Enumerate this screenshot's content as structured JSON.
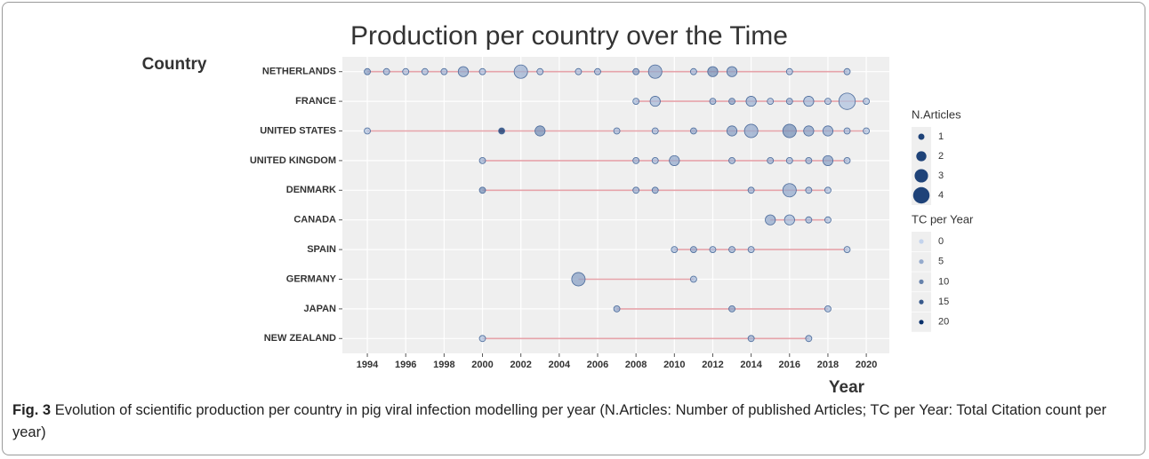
{
  "chart_data": {
    "type": "scatter",
    "title": "Production per country over the Time",
    "xlabel": "Year",
    "ylabel": "Country",
    "xlim": [
      1992.7,
      2021.2
    ],
    "xticks": [
      1994,
      1996,
      1998,
      2000,
      2002,
      2004,
      2006,
      2008,
      2010,
      2012,
      2014,
      2016,
      2018,
      2020
    ],
    "grid": true,
    "line_color": "#e6a3aa",
    "color_low": "#c3d3ec",
    "color_high": "#08306b",
    "series": [
      {
        "name": "NETHERLANDS",
        "x": [
          1994,
          1995,
          1996,
          1997,
          1998,
          1999,
          2000,
          2002,
          2003,
          2005,
          2006,
          2008,
          2009,
          2011,
          2012,
          2013,
          2016,
          2019
        ],
        "values": [
          1,
          1,
          1,
          1,
          1,
          2,
          1,
          3,
          1,
          1,
          1,
          1,
          3,
          1,
          2,
          2,
          1,
          1
        ],
        "tc": [
          6,
          3,
          2,
          2,
          3,
          5,
          2,
          4,
          2,
          2,
          3,
          6,
          5,
          3,
          8,
          6,
          2,
          3
        ]
      },
      {
        "name": "FRANCE",
        "x": [
          2008,
          2009,
          2012,
          2013,
          2014,
          2015,
          2016,
          2017,
          2018,
          2019,
          2020
        ],
        "values": [
          1,
          2,
          1,
          1,
          2,
          1,
          1,
          2,
          1,
          4,
          1
        ],
        "tc": [
          3,
          3,
          4,
          6,
          4,
          2,
          4,
          3,
          2,
          2,
          2
        ]
      },
      {
        "name": "UNITED STATES",
        "x": [
          1994,
          2001,
          2003,
          2007,
          2009,
          2011,
          2013,
          2014,
          2016,
          2017,
          2018,
          2019,
          2020
        ],
        "values": [
          1,
          1,
          2,
          1,
          1,
          1,
          2,
          3,
          3,
          2,
          2,
          1,
          1
        ],
        "tc": [
          2,
          20,
          8,
          3,
          3,
          5,
          6,
          5,
          8,
          6,
          5,
          3,
          2
        ]
      },
      {
        "name": "UNITED KINGDOM",
        "x": [
          2000,
          2008,
          2009,
          2010,
          2013,
          2015,
          2016,
          2017,
          2018,
          2019
        ],
        "values": [
          1,
          1,
          1,
          2,
          1,
          1,
          1,
          1,
          2,
          1
        ],
        "tc": [
          4,
          4,
          3,
          5,
          4,
          4,
          3,
          4,
          6,
          3
        ]
      },
      {
        "name": "DENMARK",
        "x": [
          2000,
          2008,
          2009,
          2014,
          2016,
          2017,
          2018
        ],
        "values": [
          1,
          1,
          1,
          1,
          3,
          1,
          1
        ],
        "tc": [
          8,
          4,
          5,
          4,
          5,
          3,
          2
        ]
      },
      {
        "name": "CANADA",
        "x": [
          2015,
          2016,
          2017,
          2018
        ],
        "values": [
          2,
          2,
          1,
          1
        ],
        "tc": [
          5,
          3,
          3,
          2
        ]
      },
      {
        "name": "SPAIN",
        "x": [
          2010,
          2011,
          2012,
          2013,
          2014,
          2019
        ],
        "values": [
          1,
          1,
          1,
          1,
          1,
          1
        ],
        "tc": [
          3,
          5,
          3,
          4,
          3,
          2
        ]
      },
      {
        "name": "GERMANY",
        "x": [
          2005,
          2011
        ],
        "values": [
          3,
          1
        ],
        "tc": [
          6,
          3
        ]
      },
      {
        "name": "JAPAN",
        "x": [
          2007,
          2013,
          2018
        ],
        "values": [
          1,
          1,
          1
        ],
        "tc": [
          5,
          6,
          3
        ]
      },
      {
        "name": "NEW ZEALAND",
        "x": [
          2000,
          2014,
          2017
        ],
        "values": [
          1,
          1,
          1
        ],
        "tc": [
          2,
          4,
          3
        ]
      }
    ],
    "size_legend": {
      "title": "N.Articles",
      "values": [
        1,
        2,
        3,
        4
      ]
    },
    "color_legend": {
      "title": "TC per Year",
      "values": [
        0,
        5,
        10,
        15,
        20
      ]
    }
  },
  "caption": {
    "label": "Fig. 3",
    "text": "Evolution of scientific production per country in pig viral infection modelling per year (N.Articles: Number of published Articles; TC per Year: Total Citation count per year)"
  }
}
